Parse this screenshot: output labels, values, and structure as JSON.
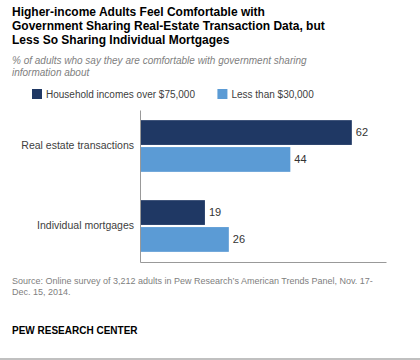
{
  "chart_data": {
    "type": "bar",
    "orientation": "horizontal",
    "title": "Higher-income Adults Feel Comfortable with\nGovernment Sharing Real-Estate Transaction Data, but\nLess So Sharing Individual Mortgages",
    "subtitle": "% of adults who say they are comfortable with government sharing\ninformation about",
    "categories": [
      "Real estate transactions",
      "Individual mortgages"
    ],
    "series": [
      {
        "name": "Household incomes over $75,000",
        "color": "#1f3864",
        "values": [
          62,
          19
        ]
      },
      {
        "name": "Less than $30,000",
        "color": "#5b9bd5",
        "values": [
          44,
          26
        ]
      }
    ],
    "xlim": [
      0,
      72
    ],
    "grid": false,
    "legend": "top",
    "data_labels": true,
    "tick_labels": "y",
    "annotations": [
      "Source: Online survey of 3,212 adults in Pew Research’s American Trends Panel, Nov. 17-\nDec. 15, 2014.",
      "PEW RESEARCH CENTER"
    ]
  }
}
